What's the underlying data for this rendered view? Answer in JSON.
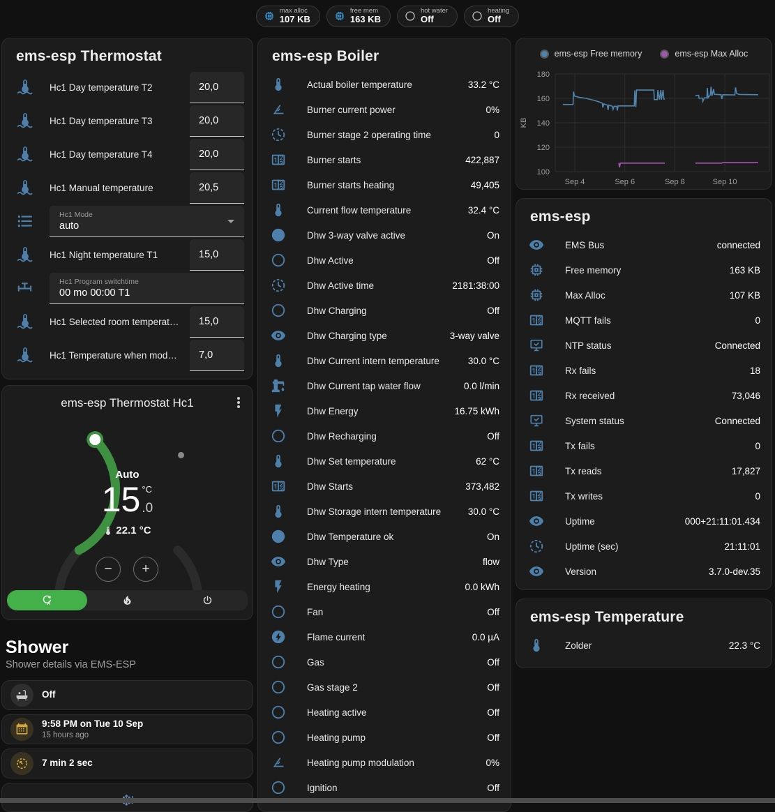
{
  "header_pills": [
    {
      "icon": "memory-icon",
      "label": "max alloc",
      "value": "107 KB"
    },
    {
      "icon": "memory-icon",
      "label": "free mem",
      "value": "163 KB"
    },
    {
      "icon": "circle-outline-icon",
      "label": "hot water",
      "value": "Off"
    },
    {
      "icon": "circle-outline-icon",
      "label": "heating",
      "value": "Off"
    }
  ],
  "thermostat_card": {
    "title": "ems-esp Thermostat",
    "rows": [
      {
        "type": "number",
        "icon": "thermometer-water-icon",
        "label": "Hc1 Day temperature T2",
        "value": "20,0"
      },
      {
        "type": "number",
        "icon": "thermometer-water-icon",
        "label": "Hc1 Day temperature T3",
        "value": "20,0"
      },
      {
        "type": "number",
        "icon": "thermometer-water-icon",
        "label": "Hc1 Day temperature T4",
        "value": "20,0"
      },
      {
        "type": "number",
        "icon": "thermometer-water-icon",
        "label": "Hc1 Manual temperature",
        "value": "20,5"
      },
      {
        "type": "select",
        "icon": "list-icon",
        "label": "Hc1 Mode",
        "value": "auto"
      },
      {
        "type": "number",
        "icon": "thermometer-water-icon",
        "label": "Hc1 Night temperature T1",
        "value": "15,0"
      },
      {
        "type": "text",
        "icon": "valve-icon",
        "label": "Hc1 Program switchtime",
        "value": "00 mo 00:00 T1"
      },
      {
        "type": "number",
        "icon": "thermometer-water-icon",
        "label": "Hc1 Selected room temperat…",
        "value": "15,0"
      },
      {
        "type": "number",
        "icon": "thermometer-water-icon",
        "label": "Hc1 Temperature when mod…",
        "value": "7,0"
      }
    ]
  },
  "dial_card": {
    "title": "ems-esp Thermostat Hc1",
    "mode": "Auto",
    "target_int": "15",
    "target_unit": "°C",
    "target_dec": ".0",
    "current": "22.1 °C",
    "minus_label": "−",
    "plus_label": "+",
    "arc_color": "#3f9142",
    "active_mode_color": "#43b049"
  },
  "shower": {
    "title": "Shower",
    "subtitle": "Shower details via EMS-ESP",
    "tiles": [
      {
        "icon": "bathtub-icon",
        "value": "Off"
      },
      {
        "icon": "calendar-icon",
        "value": "9:58 PM on Tue 10 Sep",
        "secondary": "15 hours ago"
      },
      {
        "icon": "timer-icon",
        "value": "7 min 2 sec"
      },
      {
        "icon": "snowflake-alert-icon",
        "value": ""
      }
    ]
  },
  "boiler_card": {
    "title": "ems-esp Boiler",
    "rows": [
      {
        "icon": "thermometer-icon",
        "label": "Actual boiler temperature",
        "value": "33.2 °C"
      },
      {
        "icon": "angle-acute-icon",
        "label": "Burner current power",
        "value": "0%"
      },
      {
        "icon": "progress-clock-icon",
        "label": "Burner stage 2 operating time",
        "value": "0"
      },
      {
        "icon": "counter-icon",
        "label": "Burner starts",
        "value": "422,887"
      },
      {
        "icon": "counter-icon",
        "label": "Burner starts heating",
        "value": "49,405"
      },
      {
        "icon": "thermometer-icon",
        "label": "Current flow temperature",
        "value": "32.4 °C"
      },
      {
        "icon": "check-circle-icon",
        "label": "Dhw 3-way valve active",
        "value": "On"
      },
      {
        "icon": "circle-outline-icon",
        "label": "Dhw Active",
        "value": "Off"
      },
      {
        "icon": "progress-clock-icon",
        "label": "Dhw Active time",
        "value": "2181:38:00"
      },
      {
        "icon": "circle-outline-icon",
        "label": "Dhw Charging",
        "value": "Off"
      },
      {
        "icon": "eye-icon",
        "label": "Dhw Charging type",
        "value": "3-way valve"
      },
      {
        "icon": "thermometer-icon",
        "label": "Dhw Current intern temperature",
        "value": "30.0 °C"
      },
      {
        "icon": "water-pump-icon",
        "label": "Dhw Current tap water flow",
        "value": "0.0 l/min"
      },
      {
        "icon": "lightning-icon",
        "label": "Dhw Energy",
        "value": "16.75 kWh"
      },
      {
        "icon": "circle-outline-icon",
        "label": "Dhw Recharging",
        "value": "Off"
      },
      {
        "icon": "thermometer-icon",
        "label": "Dhw Set temperature",
        "value": "62 °C"
      },
      {
        "icon": "counter-icon",
        "label": "Dhw Starts",
        "value": "373,482"
      },
      {
        "icon": "thermometer-icon",
        "label": "Dhw Storage intern temperature",
        "value": "30.0 °C"
      },
      {
        "icon": "check-circle-icon",
        "label": "Dhw Temperature ok",
        "value": "On"
      },
      {
        "icon": "eye-icon",
        "label": "Dhw Type",
        "value": "flow"
      },
      {
        "icon": "lightning-icon",
        "label": "Energy heating",
        "value": "0.0 kWh"
      },
      {
        "icon": "circle-outline-icon",
        "label": "Fan",
        "value": "Off"
      },
      {
        "icon": "current-dc-icon",
        "label": "Flame current",
        "value": "0.0 µA"
      },
      {
        "icon": "circle-outline-icon",
        "label": "Gas",
        "value": "Off"
      },
      {
        "icon": "circle-outline-icon",
        "label": "Gas stage 2",
        "value": "Off"
      },
      {
        "icon": "circle-outline-icon",
        "label": "Heating active",
        "value": "Off"
      },
      {
        "icon": "circle-outline-icon",
        "label": "Heating pump",
        "value": "Off"
      },
      {
        "icon": "angle-acute-icon",
        "label": "Heating pump modulation",
        "value": "0%"
      },
      {
        "icon": "circle-outline-icon",
        "label": "Ignition",
        "value": "Off"
      }
    ]
  },
  "emsesp_card": {
    "title": "ems-esp",
    "rows": [
      {
        "icon": "eye-icon",
        "label": "EMS Bus",
        "value": "connected"
      },
      {
        "icon": "memory-icon",
        "label": "Free memory",
        "value": "163 KB"
      },
      {
        "icon": "memory-icon",
        "label": "Max Alloc",
        "value": "107 KB"
      },
      {
        "icon": "counter-icon",
        "label": "MQTT fails",
        "value": "0"
      },
      {
        "icon": "monitor-check-icon",
        "label": "NTP status",
        "value": "Connected"
      },
      {
        "icon": "counter-icon",
        "label": "Rx fails",
        "value": "18"
      },
      {
        "icon": "counter-icon",
        "label": "Rx received",
        "value": "73,046"
      },
      {
        "icon": "monitor-check-icon",
        "label": "System status",
        "value": "Connected"
      },
      {
        "icon": "counter-icon",
        "label": "Tx fails",
        "value": "0"
      },
      {
        "icon": "counter-icon",
        "label": "Tx reads",
        "value": "17,827"
      },
      {
        "icon": "counter-icon",
        "label": "Tx writes",
        "value": "0"
      },
      {
        "icon": "eye-icon",
        "label": "Uptime",
        "value": "000+21:11:01.434"
      },
      {
        "icon": "progress-clock-icon",
        "label": "Uptime (sec)",
        "value": "21:11:01"
      },
      {
        "icon": "eye-icon",
        "label": "Version",
        "value": "3.7.0-dev.35"
      }
    ]
  },
  "temperature_card": {
    "title": "ems-esp Temperature",
    "rows": [
      {
        "icon": "thermometer-icon",
        "label": "Zolder",
        "value": "22.3 °C"
      }
    ]
  },
  "chart_card": {
    "chart_data": {
      "type": "line",
      "title": "",
      "ylabel": "KB",
      "ylim": [
        95,
        185
      ],
      "yticks": [
        100,
        120,
        140,
        160,
        180
      ],
      "xticks": [
        {
          "day": 4,
          "label": "Sep 4"
        },
        {
          "day": 6,
          "label": "Sep 6"
        },
        {
          "day": 8,
          "label": "Sep 8"
        },
        {
          "day": 10,
          "label": "Sep 10"
        }
      ],
      "grid": true,
      "legend_position": "top",
      "series": [
        {
          "name": "ems-esp Free memory",
          "color": "#4e84ad",
          "points": [
            [
              3.52,
              155
            ],
            [
              3.93,
              155
            ],
            [
              3.95,
              165.5
            ],
            [
              3.98,
              162
            ],
            [
              4.15,
              161
            ],
            [
              4.45,
              160
            ],
            [
              4.75,
              158.5
            ],
            [
              5.0,
              157
            ],
            [
              5.1,
              156
            ],
            [
              5.12,
              152.5
            ],
            [
              5.16,
              155.5
            ],
            [
              5.3,
              154.5
            ],
            [
              5.33,
              150.5
            ],
            [
              5.36,
              154.5
            ],
            [
              5.5,
              153.5
            ],
            [
              5.53,
              151
            ],
            [
              5.57,
              153.5
            ],
            [
              5.68,
              153.5
            ],
            [
              5.7,
              150
            ],
            [
              5.73,
              153.8
            ],
            [
              6.38,
              153.8
            ],
            [
              6.4,
              166.5
            ],
            [
              6.44,
              153
            ],
            [
              6.47,
              166.8
            ],
            [
              7.16,
              166.8
            ],
            [
              7.18,
              159
            ],
            [
              7.3,
              159
            ],
            [
              7.32,
              166.8
            ],
            [
              7.38,
              159
            ],
            [
              7.44,
              166.8
            ],
            [
              7.46,
              159
            ],
            [
              7.53,
              166.8
            ],
            [
              7.56,
              159.5
            ],
            [
              7.6,
              159.5
            ],
            null,
            [
              8.82,
              162.3
            ],
            [
              8.95,
              162.5
            ],
            [
              8.97,
              160
            ],
            [
              9.1,
              160.3
            ],
            [
              9.12,
              157.5
            ],
            [
              9.18,
              160.5
            ],
            [
              9.28,
              160.3
            ],
            [
              9.3,
              168.5
            ],
            [
              9.33,
              160.5
            ],
            [
              9.42,
              163
            ],
            [
              9.45,
              169.5
            ],
            [
              9.48,
              162
            ],
            [
              9.55,
              167.5
            ],
            [
              9.58,
              163.3
            ],
            [
              9.85,
              163
            ],
            [
              9.88,
              159.5
            ],
            [
              9.92,
              163
            ],
            [
              10.4,
              162.8
            ],
            [
              10.43,
              169
            ],
            [
              10.47,
              164
            ],
            [
              10.58,
              163.2
            ],
            [
              11.33,
              163
            ]
          ]
        },
        {
          "name": "ems-esp Max Alloc",
          "color": "#a457b0",
          "points": [
            [
              5.76,
              107
            ],
            [
              5.79,
              103.5
            ],
            [
              5.82,
              107
            ],
            [
              7.6,
              107
            ],
            null,
            [
              8.82,
              107
            ],
            [
              9.88,
              107
            ],
            [
              9.9,
              107.3
            ],
            [
              11.33,
              107.3
            ]
          ]
        }
      ]
    }
  }
}
